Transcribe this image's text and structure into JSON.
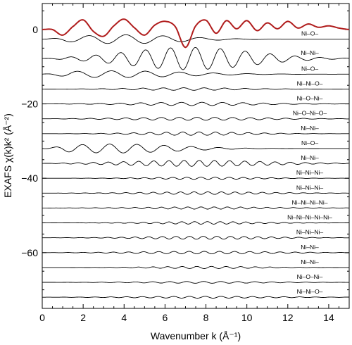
{
  "chart_data": {
    "type": "line",
    "title": "",
    "xlabel": "Wavenumber k (Å⁻¹)",
    "ylabel": "EXAFS χ(k)k² (Å⁻²)",
    "xlim": [
      0,
      15
    ],
    "ylim": [
      -75,
      7
    ],
    "x_ticks": [
      0,
      2,
      4,
      6,
      8,
      10,
      12,
      14
    ],
    "y_ticks": [
      0,
      -20,
      -40,
      -60
    ],
    "grid": false,
    "legend": "none",
    "total_trace": {
      "color": "#b01c1c",
      "baseline": 0,
      "x": [
        0,
        0.5,
        1.0,
        1.5,
        2.0,
        2.5,
        3.0,
        3.5,
        4.0,
        4.5,
        5.0,
        5.5,
        6.0,
        6.5,
        7.0,
        7.5,
        8.0,
        8.5,
        9.0,
        9.5,
        10.0,
        10.5,
        11.0,
        11.5,
        12.0,
        12.5,
        13.0,
        13.5,
        14.0,
        14.5,
        15.0
      ],
      "y": [
        0,
        0,
        -1.5,
        0.8,
        2.6,
        -0.5,
        -1.8,
        1.0,
        2.8,
        0.5,
        -1.5,
        1.2,
        2.2,
        0.8,
        -4.8,
        1.0,
        2.5,
        -1.0,
        2.4,
        0.2,
        2.4,
        -0.3,
        1.8,
        0.2,
        2.2,
        0.4,
        1.5,
        0.6,
        1.0,
        0.4,
        0
      ]
    },
    "series": [
      {
        "label": "Ni–O–",
        "baseline": -2.6,
        "peak_amplitude": 1.2,
        "envelope_center_k": 4.0,
        "cycles_per_unit_k": 0.55
      },
      {
        "label": "Ni–Ni–",
        "baseline": -7.8,
        "peak_amplitude": 3.0,
        "envelope_center_k": 7.2,
        "cycles_per_unit_k": 0.82
      },
      {
        "label": "Ni–O–",
        "baseline": -12.0,
        "peak_amplitude": 0.9,
        "envelope_center_k": 3.5,
        "cycles_per_unit_k": 0.6
      },
      {
        "label": "Ni–Ni–O–",
        "baseline": -16.0,
        "peak_amplitude": 0.35,
        "envelope_center_k": 7.0,
        "cycles_per_unit_k": 1.0
      },
      {
        "label": "Ni–O–Ni–",
        "baseline": -20.0,
        "peak_amplitude": 0.45,
        "envelope_center_k": 7.5,
        "cycles_per_unit_k": 1.0
      },
      {
        "label": "Ni–O–Ni–O–",
        "baseline": -24.0,
        "peak_amplitude": 0.4,
        "envelope_center_k": 7.5,
        "cycles_per_unit_k": 1.15
      },
      {
        "label": "Ni–Ni–",
        "baseline": -28.0,
        "peak_amplitude": 0.45,
        "envelope_center_k": 7.5,
        "cycles_per_unit_k": 1.25
      },
      {
        "label": "Ni–O–",
        "baseline": -32.0,
        "peak_amplitude": 1.2,
        "envelope_center_k": 3.5,
        "cycles_per_unit_k": 0.75
      },
      {
        "label": "Ni–Ni–",
        "baseline": -36.0,
        "peak_amplitude": 0.8,
        "envelope_center_k": 7.5,
        "cycles_per_unit_k": 1.35
      },
      {
        "label": "Ni–Ni–Ni–",
        "baseline": -40.0,
        "peak_amplitude": 0.3,
        "envelope_center_k": 8.0,
        "cycles_per_unit_k": 1.45
      },
      {
        "label": "Ni–Ni–Ni–",
        "baseline": -44.0,
        "peak_amplitude": 0.35,
        "envelope_center_k": 8.0,
        "cycles_per_unit_k": 1.5
      },
      {
        "label": "Ni–Ni–Ni–Ni–",
        "baseline": -48.0,
        "peak_amplitude": 0.3,
        "envelope_center_k": 8.0,
        "cycles_per_unit_k": 1.55
      },
      {
        "label": "Ni–Ni–Ni–Ni–Ni–",
        "baseline": -52.0,
        "peak_amplitude": 0.35,
        "envelope_center_k": 8.0,
        "cycles_per_unit_k": 1.6
      },
      {
        "label": "Ni–Ni–Ni–",
        "baseline": -56.0,
        "peak_amplitude": 0.4,
        "envelope_center_k": 8.0,
        "cycles_per_unit_k": 1.5
      },
      {
        "label": "Ni–Ni–",
        "baseline": -60.0,
        "peak_amplitude": 0.35,
        "envelope_center_k": 8.0,
        "cycles_per_unit_k": 1.35
      },
      {
        "label": "Ni–Ni–",
        "baseline": -64.0,
        "peak_amplitude": 0.3,
        "envelope_center_k": 8.0,
        "cycles_per_unit_k": 1.4
      },
      {
        "label": "Ni–O–Ni–",
        "baseline": -68.0,
        "peak_amplitude": 0.25,
        "envelope_center_k": 8.0,
        "cycles_per_unit_k": 1.2
      },
      {
        "label": "Ni–Ni–O–",
        "baseline": -72.0,
        "peak_amplitude": 0.25,
        "envelope_center_k": 8.0,
        "cycles_per_unit_k": 1.3
      }
    ]
  }
}
